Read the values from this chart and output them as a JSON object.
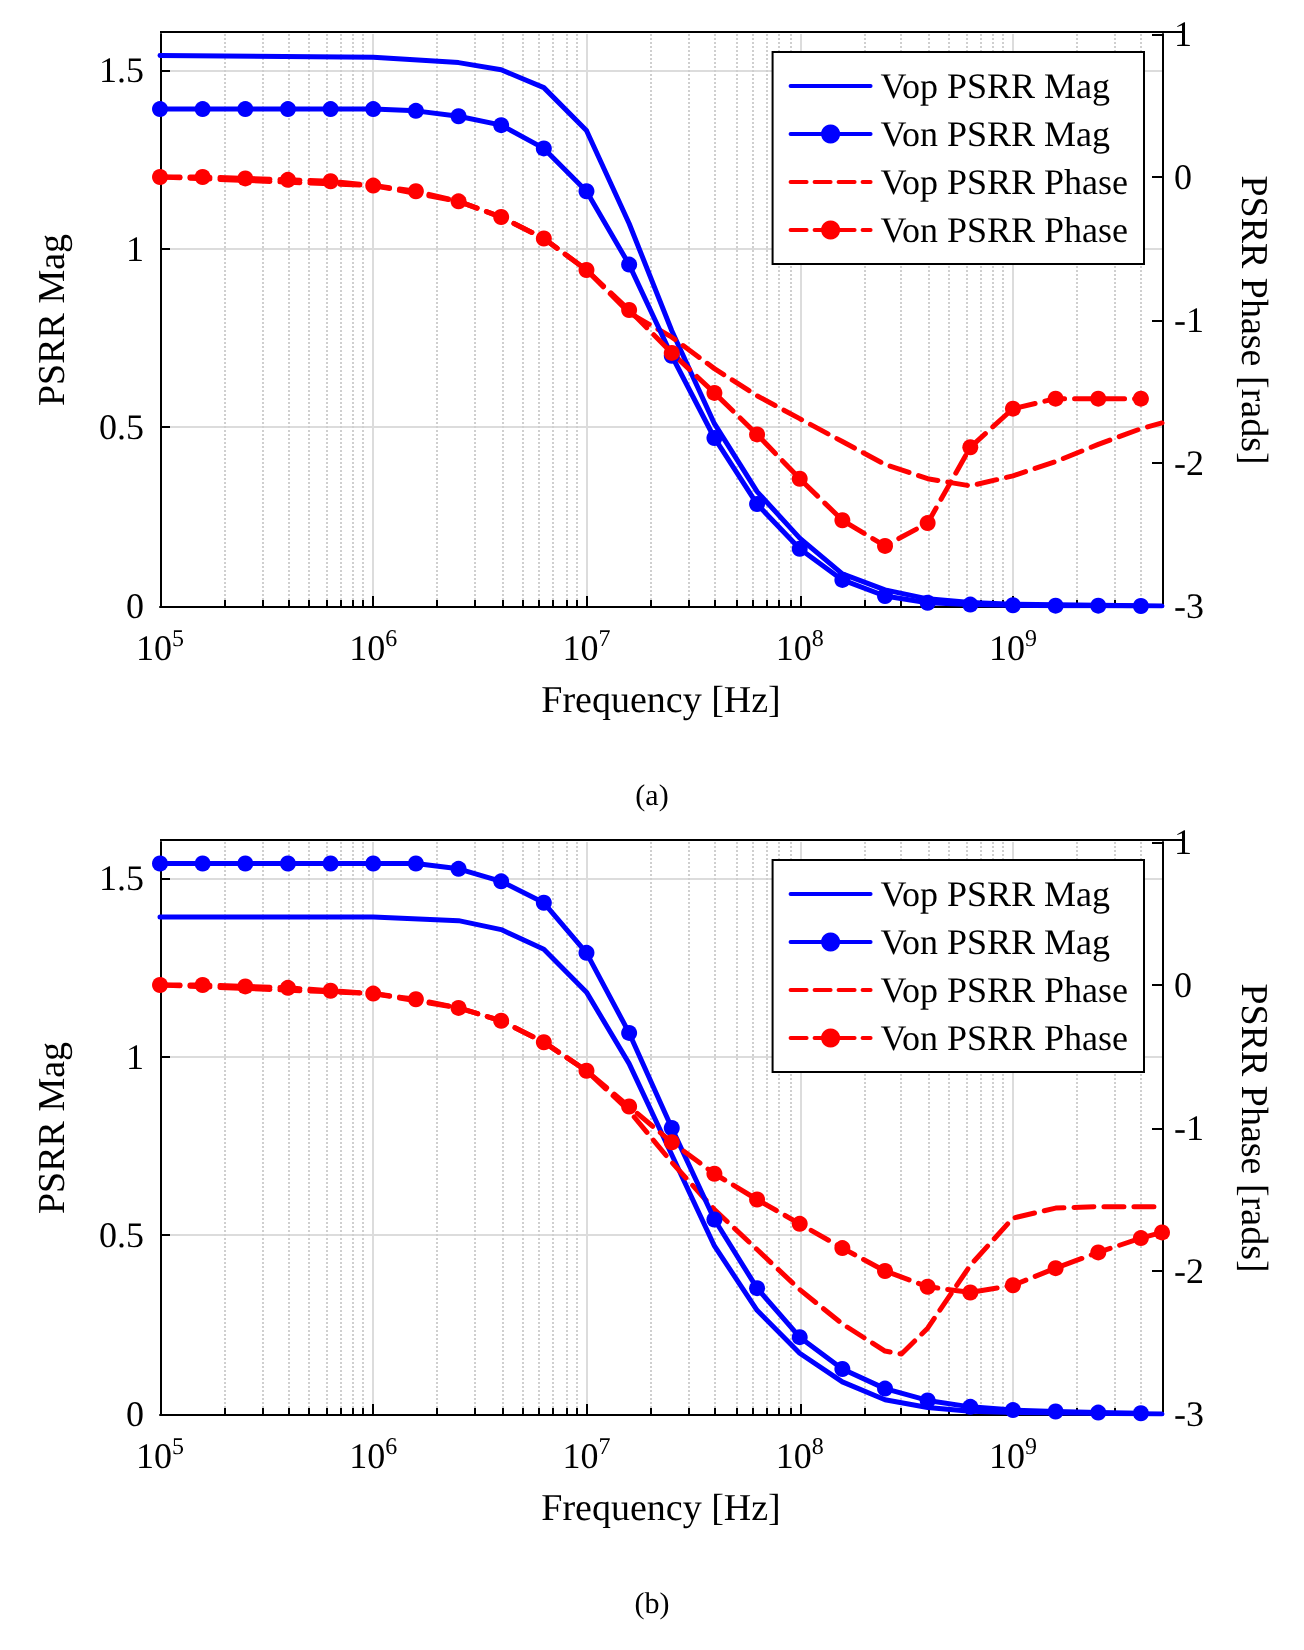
{
  "chart_data": [
    {
      "type": "line",
      "xlabel": "Frequency [Hz]",
      "ylabel": "PSRR Mag",
      "y2label": "PSRR Phase [rads]",
      "log": "x",
      "grid": true,
      "legend": "top right",
      "annotations": [
        "(a)"
      ],
      "xlim": [
        100000,
        5000000000
      ],
      "xticks": [
        {
          "value": 100000,
          "label": "10$^{5}$"
        },
        {
          "value": 1000000,
          "label": "10$^{6}$"
        },
        {
          "value": 10000000,
          "label": "10$^{7}$"
        },
        {
          "value": 100000000,
          "label": "10$^{8}$"
        },
        {
          "value": 1000000000,
          "label": "10$^{9}$"
        }
      ],
      "ylim": [
        0,
        1.6
      ],
      "yticks": [
        0,
        0.5,
        1,
        1.5
      ],
      "y2lim": [
        -3,
        1
      ],
      "y2ticks": [
        -3,
        -2,
        -1,
        0,
        1
      ],
      "series": [
        {
          "name": "Vop PSRR Mag",
          "color": "#0000ff",
          "marker": "none",
          "line_style": "solid",
          "x": [
            100000,
            1000000,
            2512000,
            3981000,
            6310000,
            10000000,
            15850000,
            25120000,
            39810000,
            63100000,
            100000000,
            158500000,
            251200000,
            398100000,
            631000000,
            1000000000,
            5000000000
          ],
          "values": [
            1.54,
            1.535,
            1.52,
            1.5,
            1.45,
            1.33,
            1.07,
            0.77,
            0.51,
            0.32,
            0.19,
            0.09,
            0.045,
            0.02,
            0.01,
            0.005,
            0
          ]
        },
        {
          "name": "Von PSRR Mag",
          "color": "#0000ff",
          "marker": "circle",
          "line_style": "solid",
          "x": [
            100000,
            158500,
            251200,
            398100,
            631000,
            1000000,
            1585000,
            2512000,
            3981000,
            6310000,
            10000000,
            15850000,
            25120000,
            39810000,
            63100000,
            100000000,
            158500000,
            251200000,
            398100000,
            631000000,
            1000000000,
            1585000000,
            2512000000,
            3981000000
          ],
          "values": [
            1.39,
            1.39,
            1.39,
            1.39,
            1.39,
            1.39,
            1.385,
            1.37,
            1.345,
            1.28,
            1.16,
            0.955,
            0.7,
            0.47,
            0.285,
            0.16,
            0.073,
            0.028,
            0.009,
            0.004,
            0.002,
            0.001,
            0.001,
            0
          ]
        },
        {
          "name": "Vop PSRR Phase",
          "color": "#ff0000",
          "marker": "none",
          "line_style": "dashed",
          "axis": "y2",
          "x": [
            100000,
            1000000,
            2512000,
            3981000,
            6310000,
            10000000,
            15850000,
            25120000,
            39810000,
            63100000,
            100000000,
            158500000,
            251200000,
            398100000,
            631000000,
            1000000000,
            1585000000,
            2512000000,
            3981000000,
            5000000000
          ],
          "values": [
            0,
            -0.06,
            -0.17,
            -0.28,
            -0.43,
            -0.65,
            -0.95,
            -1.12,
            -1.34,
            -1.53,
            -1.69,
            -1.85,
            -2.01,
            -2.11,
            -2.16,
            -2.09,
            -1.99,
            -1.87,
            -1.76,
            -1.72
          ]
        },
        {
          "name": "Von PSRR Phase",
          "color": "#ff0000",
          "marker": "circle",
          "line_style": "dashed",
          "axis": "y2",
          "x": [
            100000,
            158500,
            251200,
            398100,
            631000,
            1000000,
            1585000,
            2512000,
            3981000,
            6310000,
            10000000,
            15850000,
            25120000,
            39810000,
            63100000,
            100000000,
            158500000,
            251200000,
            398100000,
            631000000,
            1000000000,
            1585000000,
            2512000000,
            3981000000
          ],
          "values": [
            0,
            0,
            -0.01,
            -0.02,
            -0.03,
            -0.06,
            -0.1,
            -0.17,
            -0.28,
            -0.43,
            -0.65,
            -0.93,
            -1.23,
            -1.51,
            -1.8,
            -2.11,
            -2.4,
            -2.58,
            -2.42,
            -1.89,
            -1.62,
            -1.55,
            -1.55,
            -1.55
          ]
        }
      ]
    },
    {
      "type": "line",
      "xlabel": "Frequency [Hz]",
      "ylabel": "PSRR Mag",
      "y2label": "PSRR Phase [rads]",
      "log": "x",
      "grid": true,
      "legend": "top right",
      "annotations": [
        "(b)"
      ],
      "xlim": [
        100000,
        5000000000
      ],
      "xticks": [
        {
          "value": 100000,
          "label": "10$^{5}$"
        },
        {
          "value": 1000000,
          "label": "10$^{6}$"
        },
        {
          "value": 10000000,
          "label": "10$^{7}$"
        },
        {
          "value": 100000000,
          "label": "10$^{8}$"
        },
        {
          "value": 1000000000,
          "label": "10$^{9}$"
        }
      ],
      "ylim": [
        0,
        1.6
      ],
      "yticks": [
        0,
        0.5,
        1,
        1.5
      ],
      "y2lim": [
        -3,
        1
      ],
      "y2ticks": [
        -3,
        -2,
        -1,
        0,
        1
      ],
      "series": [
        {
          "name": "Vop PSRR Mag",
          "color": "#0000ff",
          "marker": "none",
          "line_style": "solid",
          "x": [
            100000,
            1000000,
            2512000,
            3981000,
            6310000,
            10000000,
            15850000,
            25120000,
            39810000,
            63100000,
            100000000,
            158500000,
            251200000,
            398100000,
            631000000,
            1000000000,
            5000000000
          ],
          "values": [
            1.39,
            1.39,
            1.38,
            1.355,
            1.3,
            1.18,
            0.98,
            0.725,
            0.47,
            0.29,
            0.17,
            0.09,
            0.04,
            0.018,
            0.008,
            0.004,
            0
          ]
        },
        {
          "name": "Von PSRR Mag",
          "color": "#0000ff",
          "marker": "circle",
          "line_style": "solid",
          "x": [
            100000,
            158500,
            251200,
            398100,
            631000,
            1000000,
            1585000,
            2512000,
            3981000,
            6310000,
            10000000,
            15850000,
            25120000,
            39810000,
            63100000,
            100000000,
            158500000,
            251200000,
            398100000,
            631000000,
            1000000000,
            1585000000,
            2512000000,
            3981000000
          ],
          "values": [
            1.54,
            1.54,
            1.54,
            1.54,
            1.54,
            1.54,
            1.54,
            1.525,
            1.49,
            1.43,
            1.29,
            1.066,
            0.8,
            0.544,
            0.352,
            0.215,
            0.126,
            0.071,
            0.038,
            0.02,
            0.011,
            0.007,
            0.004,
            0.002
          ]
        },
        {
          "name": "Vop PSRR Phase",
          "color": "#ff0000",
          "marker": "none",
          "line_style": "dashed",
          "axis": "y2",
          "x": [
            100000,
            1000000,
            2512000,
            3981000,
            6310000,
            10000000,
            15850000,
            25120000,
            39810000,
            63100000,
            100000000,
            158500000,
            251200000,
            300000000,
            398100000,
            631000000,
            1000000000,
            1585000000,
            2512000000,
            5000000000
          ],
          "values": [
            0,
            -0.06,
            -0.16,
            -0.25,
            -0.4,
            -0.6,
            -0.88,
            -1.24,
            -1.57,
            -1.85,
            -2.13,
            -2.37,
            -2.56,
            -2.58,
            -2.4,
            -1.96,
            -1.63,
            -1.56,
            -1.55,
            -1.55
          ]
        },
        {
          "name": "Von PSRR Phase",
          "color": "#ff0000",
          "marker": "circle",
          "line_style": "dashed",
          "axis": "y2",
          "x": [
            100000,
            158500,
            251200,
            398100,
            631000,
            1000000,
            1585000,
            2512000,
            3981000,
            6310000,
            10000000,
            15850000,
            25120000,
            39810000,
            63100000,
            100000000,
            158500000,
            251200000,
            398100000,
            631000000,
            1000000000,
            1585000000,
            2512000000,
            3981000000,
            5000000000
          ],
          "values": [
            0,
            0,
            -0.01,
            -0.02,
            -0.04,
            -0.06,
            -0.1,
            -0.16,
            -0.25,
            -0.4,
            -0.6,
            -0.85,
            -1.1,
            -1.32,
            -1.5,
            -1.67,
            -1.84,
            -2.0,
            -2.11,
            -2.15,
            -2.1,
            -1.98,
            -1.87,
            -1.77,
            -1.73
          ]
        }
      ]
    }
  ]
}
